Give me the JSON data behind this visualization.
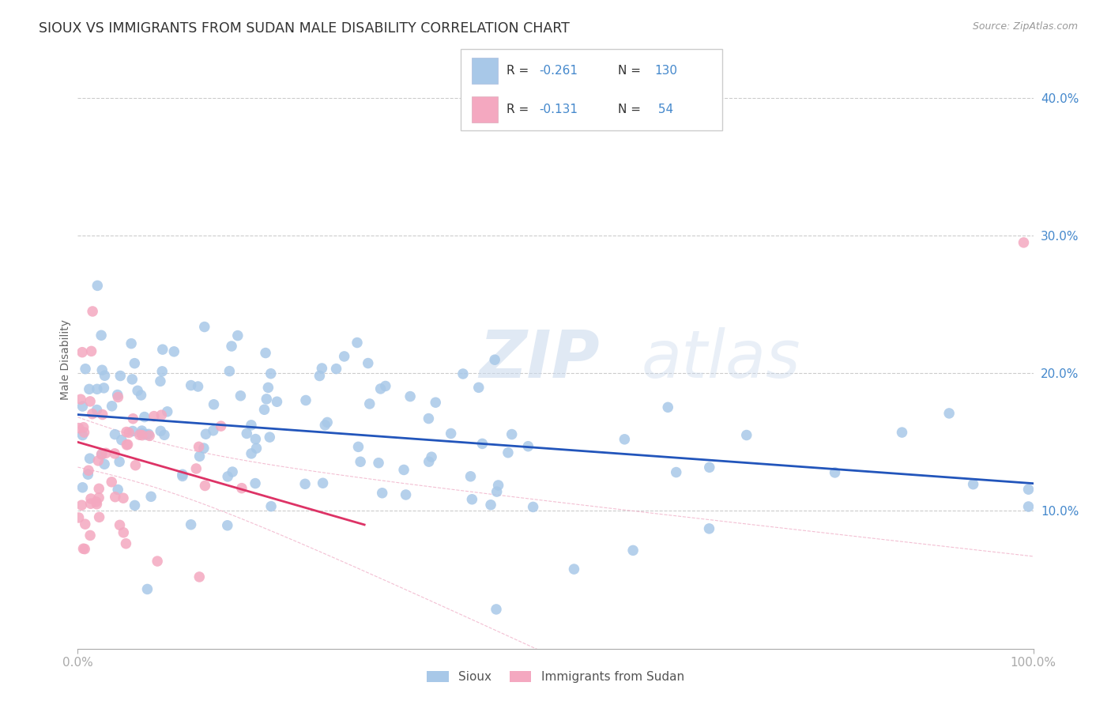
{
  "title": "SIOUX VS IMMIGRANTS FROM SUDAN MALE DISABILITY CORRELATION CHART",
  "source": "Source: ZipAtlas.com",
  "ylabel": "Male Disability",
  "watermark_zip": "ZIP",
  "watermark_atlas": "atlas",
  "legend_r1": "-0.261",
  "legend_n1": "130",
  "legend_r2": "-0.131",
  "legend_n2": "54",
  "legend_label1": "Sioux",
  "legend_label2": "Immigrants from Sudan",
  "blue_dot_color": "#a8c8e8",
  "pink_dot_color": "#f4a8c0",
  "blue_line_color": "#2255bb",
  "pink_line_color": "#dd3366",
  "pink_ci_line_color": "#f0b0c8",
  "title_color": "#333333",
  "axis_label_color": "#4488cc",
  "grid_color": "#cccccc",
  "label_color_dark": "#333333",
  "xlim": [
    0,
    100
  ],
  "ylim": [
    0,
    42
  ],
  "ytick_vals": [
    10,
    20,
    30,
    40
  ],
  "ytick_labels": [
    "10.0%",
    "20.0%",
    "30.0%",
    "40.0%"
  ],
  "xtick_labels": [
    "0.0%",
    "100.0%"
  ],
  "title_fontsize": 12.5,
  "tick_fontsize": 11
}
